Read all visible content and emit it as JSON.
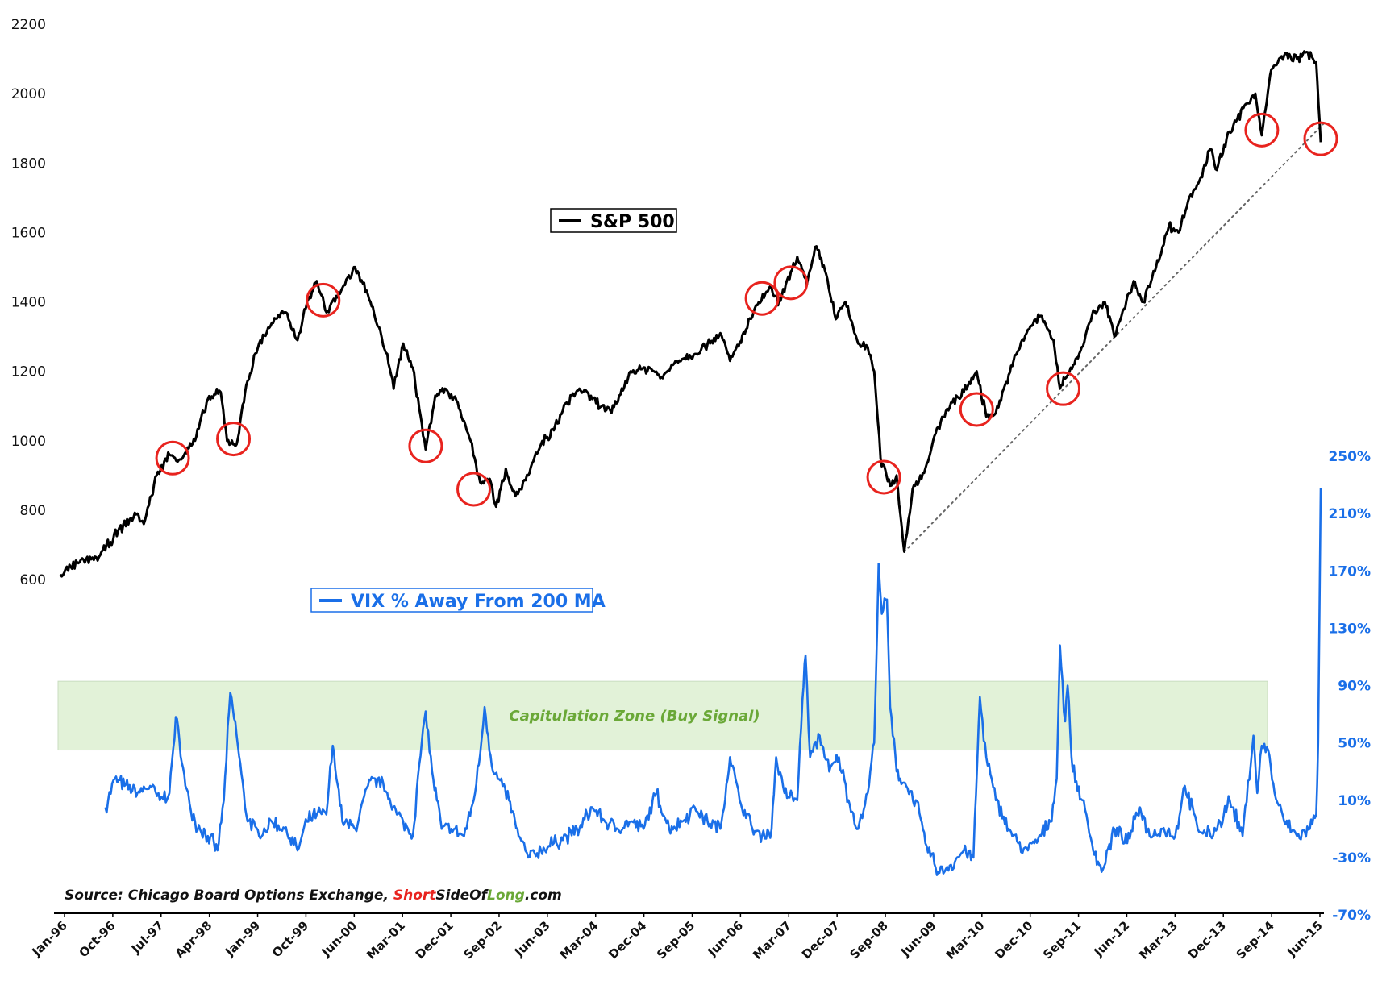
{
  "chart_data": {
    "type": "line",
    "title": "",
    "colors": {
      "sp500": "#000000",
      "vix": "#1a6fe8",
      "circle": "#e8231e",
      "zone_fill": "#e2f2d8",
      "zone_text": "#6aa837",
      "brand_red": "#e8231e",
      "brand_green": "#6aa837"
    },
    "x_labels": [
      "Jan-96",
      "Oct-96",
      "Jul-97",
      "Apr-98",
      "Jan-99",
      "Oct-99",
      "Jun-00",
      "Mar-01",
      "Dec-01",
      "Sep-02",
      "Jun-03",
      "Mar-04",
      "Dec-04",
      "Sep-05",
      "Jun-06",
      "Mar-07",
      "Dec-07",
      "Sep-08",
      "Jun-09",
      "Mar-10",
      "Dec-10",
      "Sep-11",
      "Jun-12",
      "Mar-13",
      "Dec-13",
      "Sep-14",
      "Jun-15"
    ],
    "x_range": [
      1996.0,
      2015.67
    ],
    "left_axis": {
      "label": "",
      "ticks": [
        "600",
        "800",
        "1000",
        "1200",
        "1400",
        "1600",
        "1800",
        "2000",
        "2200"
      ],
      "min": 600,
      "max": 2200
    },
    "right_axis": {
      "label": "",
      "ticks": [
        "-70%",
        "-30%",
        "10%",
        "50%",
        "90%",
        "130%",
        "170%",
        "210%",
        "250%"
      ],
      "min": -70,
      "max": 250
    },
    "series": [
      {
        "name": "S&P 500",
        "axis": "left",
        "points": [
          [
            1996.0,
            615
          ],
          [
            1996.3,
            650
          ],
          [
            1996.6,
            665
          ],
          [
            1996.9,
            740
          ],
          [
            1997.2,
            790
          ],
          [
            1997.3,
            760
          ],
          [
            1997.5,
            900
          ],
          [
            1997.7,
            960
          ],
          [
            1997.85,
            945
          ],
          [
            1998.1,
            1000
          ],
          [
            1998.3,
            1120
          ],
          [
            1998.5,
            1140
          ],
          [
            1998.6,
            1000
          ],
          [
            1998.75,
            990
          ],
          [
            1998.9,
            1160
          ],
          [
            1999.1,
            1280
          ],
          [
            1999.3,
            1340
          ],
          [
            1999.5,
            1370
          ],
          [
            1999.7,
            1290
          ],
          [
            1999.85,
            1400
          ],
          [
            2000.0,
            1460
          ],
          [
            2000.15,
            1370
          ],
          [
            2000.4,
            1440
          ],
          [
            2000.6,
            1500
          ],
          [
            2000.8,
            1420
          ],
          [
            2000.95,
            1330
          ],
          [
            2001.1,
            1250
          ],
          [
            2001.2,
            1150
          ],
          [
            2001.35,
            1280
          ],
          [
            2001.5,
            1210
          ],
          [
            2001.7,
            975
          ],
          [
            2001.85,
            1130
          ],
          [
            2002.0,
            1150
          ],
          [
            2002.2,
            1110
          ],
          [
            2002.4,
            1000
          ],
          [
            2002.55,
            880
          ],
          [
            2002.7,
            890
          ],
          [
            2002.8,
            810
          ],
          [
            2002.95,
            920
          ],
          [
            2003.1,
            840
          ],
          [
            2003.3,
            900
          ],
          [
            2003.5,
            990
          ],
          [
            2003.7,
            1030
          ],
          [
            2003.9,
            1110
          ],
          [
            2004.1,
            1150
          ],
          [
            2004.3,
            1120
          ],
          [
            2004.6,
            1080
          ],
          [
            2004.9,
            1200
          ],
          [
            2005.2,
            1210
          ],
          [
            2005.4,
            1180
          ],
          [
            2005.6,
            1230
          ],
          [
            2005.9,
            1250
          ],
          [
            2006.1,
            1280
          ],
          [
            2006.3,
            1310
          ],
          [
            2006.45,
            1230
          ],
          [
            2006.7,
            1320
          ],
          [
            2006.9,
            1400
          ],
          [
            2007.1,
            1440
          ],
          [
            2007.2,
            1390
          ],
          [
            2007.5,
            1530
          ],
          [
            2007.65,
            1450
          ],
          [
            2007.8,
            1560
          ],
          [
            2007.95,
            1480
          ],
          [
            2008.1,
            1350
          ],
          [
            2008.25,
            1400
          ],
          [
            2008.45,
            1280
          ],
          [
            2008.6,
            1270
          ],
          [
            2008.7,
            1200
          ],
          [
            2008.8,
            950
          ],
          [
            2008.95,
            870
          ],
          [
            2009.05,
            900
          ],
          [
            2009.17,
            680
          ],
          [
            2009.3,
            860
          ],
          [
            2009.5,
            920
          ],
          [
            2009.7,
            1040
          ],
          [
            2009.9,
            1110
          ],
          [
            2010.1,
            1140
          ],
          [
            2010.3,
            1200
          ],
          [
            2010.45,
            1070
          ],
          [
            2010.6,
            1080
          ],
          [
            2010.8,
            1190
          ],
          [
            2010.95,
            1260
          ],
          [
            2011.1,
            1320
          ],
          [
            2011.3,
            1360
          ],
          [
            2011.5,
            1290
          ],
          [
            2011.6,
            1150
          ],
          [
            2011.75,
            1200
          ],
          [
            2011.9,
            1250
          ],
          [
            2012.1,
            1360
          ],
          [
            2012.3,
            1400
          ],
          [
            2012.45,
            1300
          ],
          [
            2012.6,
            1380
          ],
          [
            2012.75,
            1460
          ],
          [
            2012.9,
            1400
          ],
          [
            2013.1,
            1500
          ],
          [
            2013.3,
            1620
          ],
          [
            2013.45,
            1600
          ],
          [
            2013.6,
            1690
          ],
          [
            2013.8,
            1760
          ],
          [
            2013.95,
            1840
          ],
          [
            2014.05,
            1780
          ],
          [
            2014.2,
            1870
          ],
          [
            2014.35,
            1920
          ],
          [
            2014.5,
            1970
          ],
          [
            2014.65,
            2000
          ],
          [
            2014.75,
            1880
          ],
          [
            2014.9,
            2070
          ],
          [
            2015.1,
            2110
          ],
          [
            2015.3,
            2100
          ],
          [
            2015.45,
            2120
          ],
          [
            2015.55,
            2100
          ],
          [
            2015.6,
            2090
          ],
          [
            2015.67,
            1860
          ]
        ]
      },
      {
        "name": "VIX % Away From 200 MA",
        "axis": "right",
        "points": [
          [
            1996.7,
            5
          ],
          [
            1996.85,
            25
          ],
          [
            1997.0,
            20
          ],
          [
            1997.2,
            15
          ],
          [
            1997.4,
            20
          ],
          [
            1997.55,
            10
          ],
          [
            1997.7,
            15
          ],
          [
            1997.8,
            68
          ],
          [
            1997.95,
            20
          ],
          [
            1998.1,
            -5
          ],
          [
            1998.3,
            -15
          ],
          [
            1998.45,
            -25
          ],
          [
            1998.55,
            10
          ],
          [
            1998.65,
            85
          ],
          [
            1998.75,
            55
          ],
          [
            1998.9,
            0
          ],
          [
            1999.1,
            -15
          ],
          [
            1999.3,
            -5
          ],
          [
            1999.5,
            -10
          ],
          [
            1999.7,
            -25
          ],
          [
            1999.85,
            -5
          ],
          [
            2000.0,
            0
          ],
          [
            2000.15,
            0
          ],
          [
            2000.25,
            48
          ],
          [
            2000.4,
            -5
          ],
          [
            2000.6,
            -10
          ],
          [
            2000.8,
            20
          ],
          [
            2000.95,
            25
          ],
          [
            2001.1,
            15
          ],
          [
            2001.25,
            0
          ],
          [
            2001.35,
            -5
          ],
          [
            2001.5,
            -15
          ],
          [
            2001.6,
            35
          ],
          [
            2001.7,
            72
          ],
          [
            2001.8,
            30
          ],
          [
            2001.95,
            -10
          ],
          [
            2002.1,
            -10
          ],
          [
            2002.3,
            -15
          ],
          [
            2002.45,
            10
          ],
          [
            2002.55,
            42
          ],
          [
            2002.62,
            75
          ],
          [
            2002.75,
            30
          ],
          [
            2002.9,
            20
          ],
          [
            2003.0,
            10
          ],
          [
            2003.15,
            -15
          ],
          [
            2003.3,
            -30
          ],
          [
            2003.5,
            -25
          ],
          [
            2003.7,
            -20
          ],
          [
            2003.9,
            -15
          ],
          [
            2004.1,
            -10
          ],
          [
            2004.3,
            5
          ],
          [
            2004.5,
            -5
          ],
          [
            2004.7,
            -10
          ],
          [
            2004.9,
            -5
          ],
          [
            2005.1,
            -10
          ],
          [
            2005.3,
            15
          ],
          [
            2005.5,
            -10
          ],
          [
            2005.7,
            -5
          ],
          [
            2005.9,
            5
          ],
          [
            2006.1,
            -5
          ],
          [
            2006.3,
            -10
          ],
          [
            2006.45,
            40
          ],
          [
            2006.6,
            10
          ],
          [
            2006.8,
            -10
          ],
          [
            2006.95,
            -15
          ],
          [
            2007.1,
            -10
          ],
          [
            2007.17,
            40
          ],
          [
            2007.3,
            15
          ],
          [
            2007.5,
            10
          ],
          [
            2007.58,
            80
          ],
          [
            2007.63,
            111
          ],
          [
            2007.7,
            40
          ],
          [
            2007.85,
            55
          ],
          [
            2008.0,
            30
          ],
          [
            2008.15,
            40
          ],
          [
            2008.3,
            10
          ],
          [
            2008.45,
            -10
          ],
          [
            2008.6,
            15
          ],
          [
            2008.7,
            50
          ],
          [
            2008.77,
            175
          ],
          [
            2008.82,
            140
          ],
          [
            2008.9,
            150
          ],
          [
            2008.95,
            75
          ],
          [
            2009.05,
            30
          ],
          [
            2009.2,
            20
          ],
          [
            2009.35,
            10
          ],
          [
            2009.5,
            -20
          ],
          [
            2009.7,
            -40
          ],
          [
            2009.9,
            -35
          ],
          [
            2010.1,
            -25
          ],
          [
            2010.25,
            -30
          ],
          [
            2010.35,
            82
          ],
          [
            2010.45,
            40
          ],
          [
            2010.6,
            10
          ],
          [
            2010.8,
            -10
          ],
          [
            2010.95,
            -20
          ],
          [
            2011.1,
            -25
          ],
          [
            2011.3,
            -15
          ],
          [
            2011.45,
            -5
          ],
          [
            2011.55,
            25
          ],
          [
            2011.6,
            118
          ],
          [
            2011.68,
            65
          ],
          [
            2011.72,
            90
          ],
          [
            2011.8,
            30
          ],
          [
            2011.95,
            10
          ],
          [
            2012.1,
            -20
          ],
          [
            2012.25,
            -40
          ],
          [
            2012.45,
            -10
          ],
          [
            2012.65,
            -20
          ],
          [
            2012.85,
            5
          ],
          [
            2013.0,
            -15
          ],
          [
            2013.2,
            -10
          ],
          [
            2013.4,
            -15
          ],
          [
            2013.55,
            20
          ],
          [
            2013.75,
            -10
          ],
          [
            2013.95,
            -15
          ],
          [
            2014.1,
            -5
          ],
          [
            2014.25,
            10
          ],
          [
            2014.45,
            -15
          ],
          [
            2014.62,
            55
          ],
          [
            2014.68,
            15
          ],
          [
            2014.75,
            48
          ],
          [
            2014.85,
            45
          ],
          [
            2014.95,
            15
          ],
          [
            2015.1,
            -5
          ],
          [
            2015.3,
            -15
          ],
          [
            2015.5,
            -10
          ],
          [
            2015.6,
            0
          ],
          [
            2015.63,
            50
          ],
          [
            2015.67,
            228
          ]
        ]
      },
      {
        "name": "Trendline",
        "axis": "left",
        "style": "dotted",
        "points": [
          [
            2009.17,
            680
          ],
          [
            2015.75,
            1920
          ]
        ]
      }
    ],
    "annotations": {
      "circles": [
        [
          1997.75,
          950
        ],
        [
          1998.7,
          1005
        ],
        [
          2001.7,
          985
        ],
        [
          2002.45,
          860
        ],
        [
          2000.1,
          1405
        ],
        [
          2008.85,
          895
        ],
        [
          2006.95,
          1410
        ],
        [
          2007.4,
          1455
        ],
        [
          2010.3,
          1090
        ],
        [
          2011.65,
          1150
        ],
        [
          2014.75,
          1895
        ],
        [
          2015.67,
          1870
        ]
      ],
      "capitulation_zone": {
        "label": "Capitulation Zone (Buy Signal)",
        "range": [
          45,
          93
        ]
      }
    },
    "legends": {
      "sp500": "S&P 500",
      "vix": "VIX % Away From 200 MA"
    },
    "source": {
      "prefix": "Source: Chicago Board Options Exchange, ",
      "brand_short": "Short",
      "brand_side": "SideOf",
      "brand_long": "Long",
      "suffix": ".com"
    }
  }
}
